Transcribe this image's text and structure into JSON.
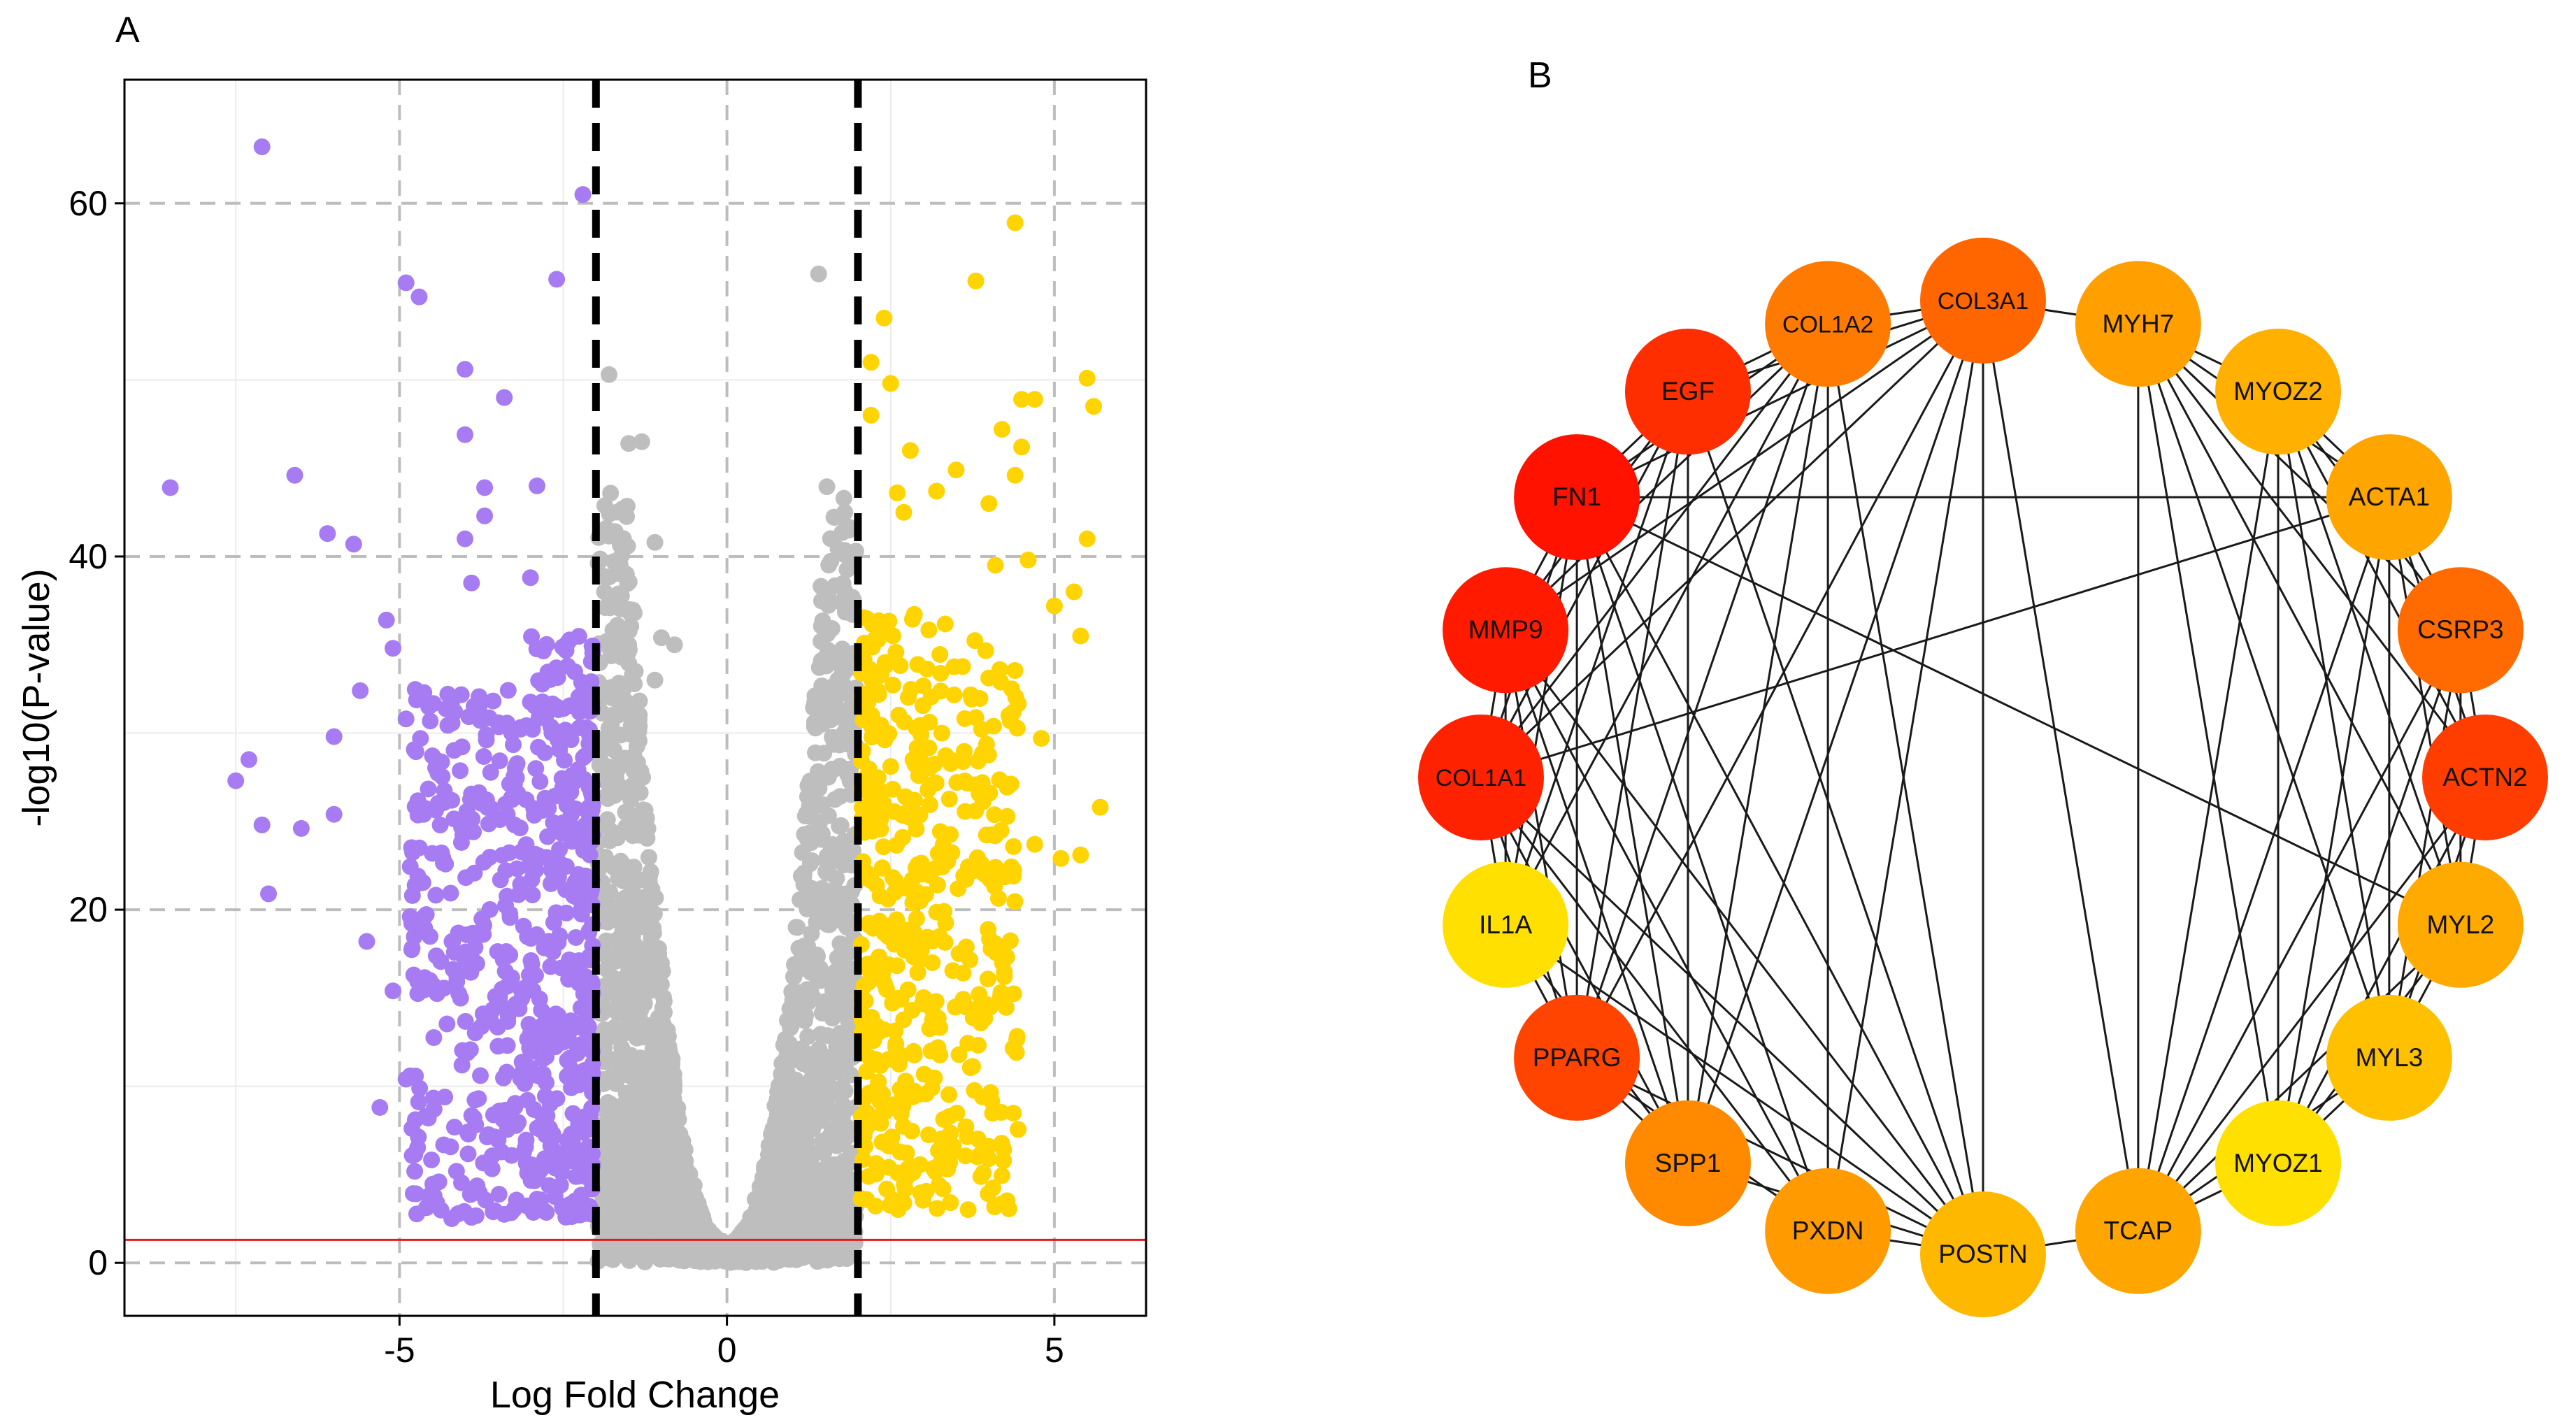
{
  "panels": {
    "a_label": "A",
    "b_label": "B"
  },
  "chart_data": [
    {
      "type": "scatter",
      "panel": "A",
      "title": "",
      "xlabel": "Log Fold Change",
      "ylabel": "-log10(P-value)",
      "xlim": [
        -9.2,
        6.4
      ],
      "ylim": [
        -3,
        67
      ],
      "xticks": [
        -5,
        0,
        5
      ],
      "xtick_labels": [
        "-5",
        "0",
        "5"
      ],
      "yticks": [
        0,
        20,
        40,
        60
      ],
      "ytick_labels": [
        "0",
        "20",
        "40",
        "60"
      ],
      "grid": true,
      "fold_change_cutoffs": [
        -2,
        2
      ],
      "pvalue_threshold_line": 1.3,
      "colors": {
        "down": "#A77CF2",
        "ns": "#BEBEBE",
        "up": "#FFD400",
        "cutoff": "#000000",
        "threshold": "#E41A1C",
        "grid": "#BDBDBD"
      },
      "series": [
        {
          "name": "down",
          "points": [
            [
              -7.1,
              63.2
            ],
            [
              -2.2,
              60.5
            ],
            [
              -4.9,
              55.5
            ],
            [
              -4.7,
              54.7
            ],
            [
              -2.6,
              55.7
            ],
            [
              -4.0,
              50.6
            ],
            [
              -3.4,
              49.0
            ],
            [
              -4.0,
              46.9
            ],
            [
              -8.5,
              43.9
            ],
            [
              -6.6,
              44.6
            ],
            [
              -3.7,
              43.9
            ],
            [
              -2.9,
              44.0
            ],
            [
              -6.1,
              41.3
            ],
            [
              -5.7,
              40.7
            ],
            [
              -4.0,
              41.0
            ],
            [
              -3.7,
              42.3
            ],
            [
              -3.9,
              38.5
            ],
            [
              -3.0,
              38.8
            ],
            [
              -5.2,
              36.4
            ],
            [
              -5.1,
              34.8
            ],
            [
              -7.5,
              27.3
            ],
            [
              -7.3,
              28.5
            ],
            [
              -7.1,
              24.8
            ],
            [
              -6.5,
              24.6
            ],
            [
              -6.0,
              25.4
            ],
            [
              -7.0,
              20.9
            ],
            [
              -5.5,
              18.2
            ],
            [
              -5.1,
              15.4
            ],
            [
              -4.9,
              10.4
            ],
            [
              -4.6,
              8.3
            ],
            [
              -5.3,
              8.8
            ],
            [
              -6.0,
              29.8
            ],
            [
              -5.6,
              32.4
            ],
            [
              -4.9,
              30.8
            ]
          ]
        },
        {
          "name": "ns",
          "points": [
            [
              1.4,
              56.0
            ],
            [
              -1.8,
              50.3
            ],
            [
              -1.5,
              46.4
            ],
            [
              -1.3,
              46.5
            ],
            [
              -1.8,
              41.3
            ],
            [
              -1.1,
              40.8
            ],
            [
              -1.0,
              35.4
            ],
            [
              -1.5,
              35.0
            ],
            [
              -0.8,
              35.0
            ],
            [
              -1.4,
              33.5
            ],
            [
              -1.1,
              33.0
            ],
            [
              -1.6,
              32.5
            ],
            [
              -1.9,
              32.0
            ]
          ]
        },
        {
          "name": "up",
          "points": [
            [
              4.4,
              58.9
            ],
            [
              3.8,
              55.6
            ],
            [
              2.4,
              53.5
            ],
            [
              2.2,
              51.0
            ],
            [
              2.5,
              49.8
            ],
            [
              5.5,
              50.1
            ],
            [
              5.6,
              48.5
            ],
            [
              4.5,
              48.9
            ],
            [
              4.7,
              48.9
            ],
            [
              4.2,
              47.2
            ],
            [
              4.5,
              46.2
            ],
            [
              3.5,
              44.9
            ],
            [
              4.4,
              44.6
            ],
            [
              3.2,
              43.7
            ],
            [
              4.0,
              43.0
            ],
            [
              2.7,
              42.5
            ],
            [
              4.1,
              39.5
            ],
            [
              4.6,
              39.8
            ],
            [
              5.5,
              41.0
            ],
            [
              5.0,
              37.2
            ],
            [
              5.3,
              38.0
            ],
            [
              5.4,
              35.5
            ],
            [
              4.8,
              29.7
            ],
            [
              5.7,
              25.8
            ],
            [
              5.4,
              23.1
            ],
            [
              5.1,
              22.9
            ],
            [
              4.7,
              23.7
            ],
            [
              4.1,
              22.4
            ],
            [
              3.9,
              9.4
            ],
            [
              3.9,
              6.3
            ],
            [
              4.0,
              5.9
            ],
            [
              2.6,
              43.6
            ],
            [
              2.8,
              46.0
            ],
            [
              2.2,
              48.0
            ]
          ]
        }
      ]
    },
    {
      "type": "network",
      "panel": "B",
      "layout": "circle",
      "nodes": [
        {
          "name": "COL3A1",
          "color": "#FF6600"
        },
        {
          "name": "MYH7",
          "color": "#FF9F00"
        },
        {
          "name": "MYOZ2",
          "color": "#FFB000"
        },
        {
          "name": "ACTA1",
          "color": "#FFA500"
        },
        {
          "name": "CSRP3",
          "color": "#FF6B00"
        },
        {
          "name": "ACTN2",
          "color": "#FF3D00"
        },
        {
          "name": "MYL2",
          "color": "#FFAA00"
        },
        {
          "name": "MYL3",
          "color": "#FFC000"
        },
        {
          "name": "MYOZ1",
          "color": "#FFE000"
        },
        {
          "name": "TCAP",
          "color": "#FFA500"
        },
        {
          "name": "POSTN",
          "color": "#FFB800"
        },
        {
          "name": "PXDN",
          "color": "#FF9A00"
        },
        {
          "name": "SPP1",
          "color": "#FF8A00"
        },
        {
          "name": "PPARG",
          "color": "#FF4400"
        },
        {
          "name": "IL1A",
          "color": "#FFE000"
        },
        {
          "name": "COL1A1",
          "color": "#FF2200"
        },
        {
          "name": "MMP9",
          "color": "#FF1A00"
        },
        {
          "name": "FN1",
          "color": "#FF1200"
        },
        {
          "name": "EGF",
          "color": "#FF2E00"
        },
        {
          "name": "COL1A2",
          "color": "#FF7A00"
        }
      ],
      "edges": [
        [
          "COL3A1",
          "COL1A2"
        ],
        [
          "COL3A1",
          "EGF"
        ],
        [
          "COL3A1",
          "FN1"
        ],
        [
          "COL3A1",
          "MMP9"
        ],
        [
          "COL3A1",
          "COL1A1"
        ],
        [
          "COL3A1",
          "PPARG"
        ],
        [
          "COL3A1",
          "SPP1"
        ],
        [
          "COL3A1",
          "PXDN"
        ],
        [
          "COL3A1",
          "POSTN"
        ],
        [
          "COL3A1",
          "TCAP"
        ],
        [
          "COL3A1",
          "MYH7"
        ],
        [
          "COL1A2",
          "EGF"
        ],
        [
          "COL1A2",
          "FN1"
        ],
        [
          "COL1A2",
          "MMP9"
        ],
        [
          "COL1A2",
          "COL1A1"
        ],
        [
          "COL1A2",
          "PPARG"
        ],
        [
          "COL1A2",
          "SPP1"
        ],
        [
          "COL1A2",
          "PXDN"
        ],
        [
          "COL1A2",
          "POSTN"
        ],
        [
          "COL1A2",
          "IL1A"
        ],
        [
          "EGF",
          "FN1"
        ],
        [
          "EGF",
          "MMP9"
        ],
        [
          "EGF",
          "COL1A1"
        ],
        [
          "EGF",
          "PPARG"
        ],
        [
          "EGF",
          "IL1A"
        ],
        [
          "EGF",
          "SPP1"
        ],
        [
          "EGF",
          "POSTN"
        ],
        [
          "FN1",
          "MMP9"
        ],
        [
          "FN1",
          "COL1A1"
        ],
        [
          "FN1",
          "IL1A"
        ],
        [
          "FN1",
          "PPARG"
        ],
        [
          "FN1",
          "SPP1"
        ],
        [
          "FN1",
          "PXDN"
        ],
        [
          "FN1",
          "POSTN"
        ],
        [
          "FN1",
          "ACTA1"
        ],
        [
          "FN1",
          "MYL2"
        ],
        [
          "MMP9",
          "COL1A1"
        ],
        [
          "MMP9",
          "IL1A"
        ],
        [
          "MMP9",
          "PPARG"
        ],
        [
          "MMP9",
          "SPP1"
        ],
        [
          "MMP9",
          "POSTN"
        ],
        [
          "MMP9",
          "PXDN"
        ],
        [
          "COL1A1",
          "IL1A"
        ],
        [
          "COL1A1",
          "PPARG"
        ],
        [
          "COL1A1",
          "SPP1"
        ],
        [
          "COL1A1",
          "PXDN"
        ],
        [
          "COL1A1",
          "POSTN"
        ],
        [
          "COL1A1",
          "ACTA1"
        ],
        [
          "IL1A",
          "PPARG"
        ],
        [
          "IL1A",
          "SPP1"
        ],
        [
          "IL1A",
          "POSTN"
        ],
        [
          "PPARG",
          "SPP1"
        ],
        [
          "PPARG",
          "PXDN"
        ],
        [
          "PPARG",
          "POSTN"
        ],
        [
          "SPP1",
          "POSTN"
        ],
        [
          "PXDN",
          "POSTN"
        ],
        [
          "POSTN",
          "TCAP"
        ],
        [
          "MYH7",
          "MYOZ2"
        ],
        [
          "MYH7",
          "ACTA1"
        ],
        [
          "MYH7",
          "CSRP3"
        ],
        [
          "MYH7",
          "ACTN2"
        ],
        [
          "MYH7",
          "MYL2"
        ],
        [
          "MYH7",
          "MYL3"
        ],
        [
          "MYH7",
          "MYOZ1"
        ],
        [
          "MYH7",
          "TCAP"
        ],
        [
          "MYOZ2",
          "ACTA1"
        ],
        [
          "MYOZ2",
          "CSRP3"
        ],
        [
          "MYOZ2",
          "ACTN2"
        ],
        [
          "MYOZ2",
          "MYL2"
        ],
        [
          "MYOZ2",
          "MYL3"
        ],
        [
          "MYOZ2",
          "MYOZ1"
        ],
        [
          "MYOZ2",
          "TCAP"
        ],
        [
          "ACTA1",
          "CSRP3"
        ],
        [
          "ACTA1",
          "ACTN2"
        ],
        [
          "ACTA1",
          "MYL2"
        ],
        [
          "ACTA1",
          "MYL3"
        ],
        [
          "ACTA1",
          "MYOZ1"
        ],
        [
          "ACTA1",
          "TCAP"
        ],
        [
          "CSRP3",
          "ACTN2"
        ],
        [
          "CSRP3",
          "MYL2"
        ],
        [
          "CSRP3",
          "MYL3"
        ],
        [
          "CSRP3",
          "MYOZ1"
        ],
        [
          "CSRP3",
          "TCAP"
        ],
        [
          "ACTN2",
          "MYL2"
        ],
        [
          "ACTN2",
          "MYL3"
        ],
        [
          "ACTN2",
          "MYOZ1"
        ],
        [
          "ACTN2",
          "TCAP"
        ],
        [
          "MYL2",
          "MYL3"
        ],
        [
          "MYL2",
          "MYOZ1"
        ],
        [
          "MYL2",
          "TCAP"
        ],
        [
          "MYL3",
          "MYOZ1"
        ],
        [
          "MYL3",
          "TCAP"
        ],
        [
          "MYOZ1",
          "TCAP"
        ]
      ]
    }
  ]
}
